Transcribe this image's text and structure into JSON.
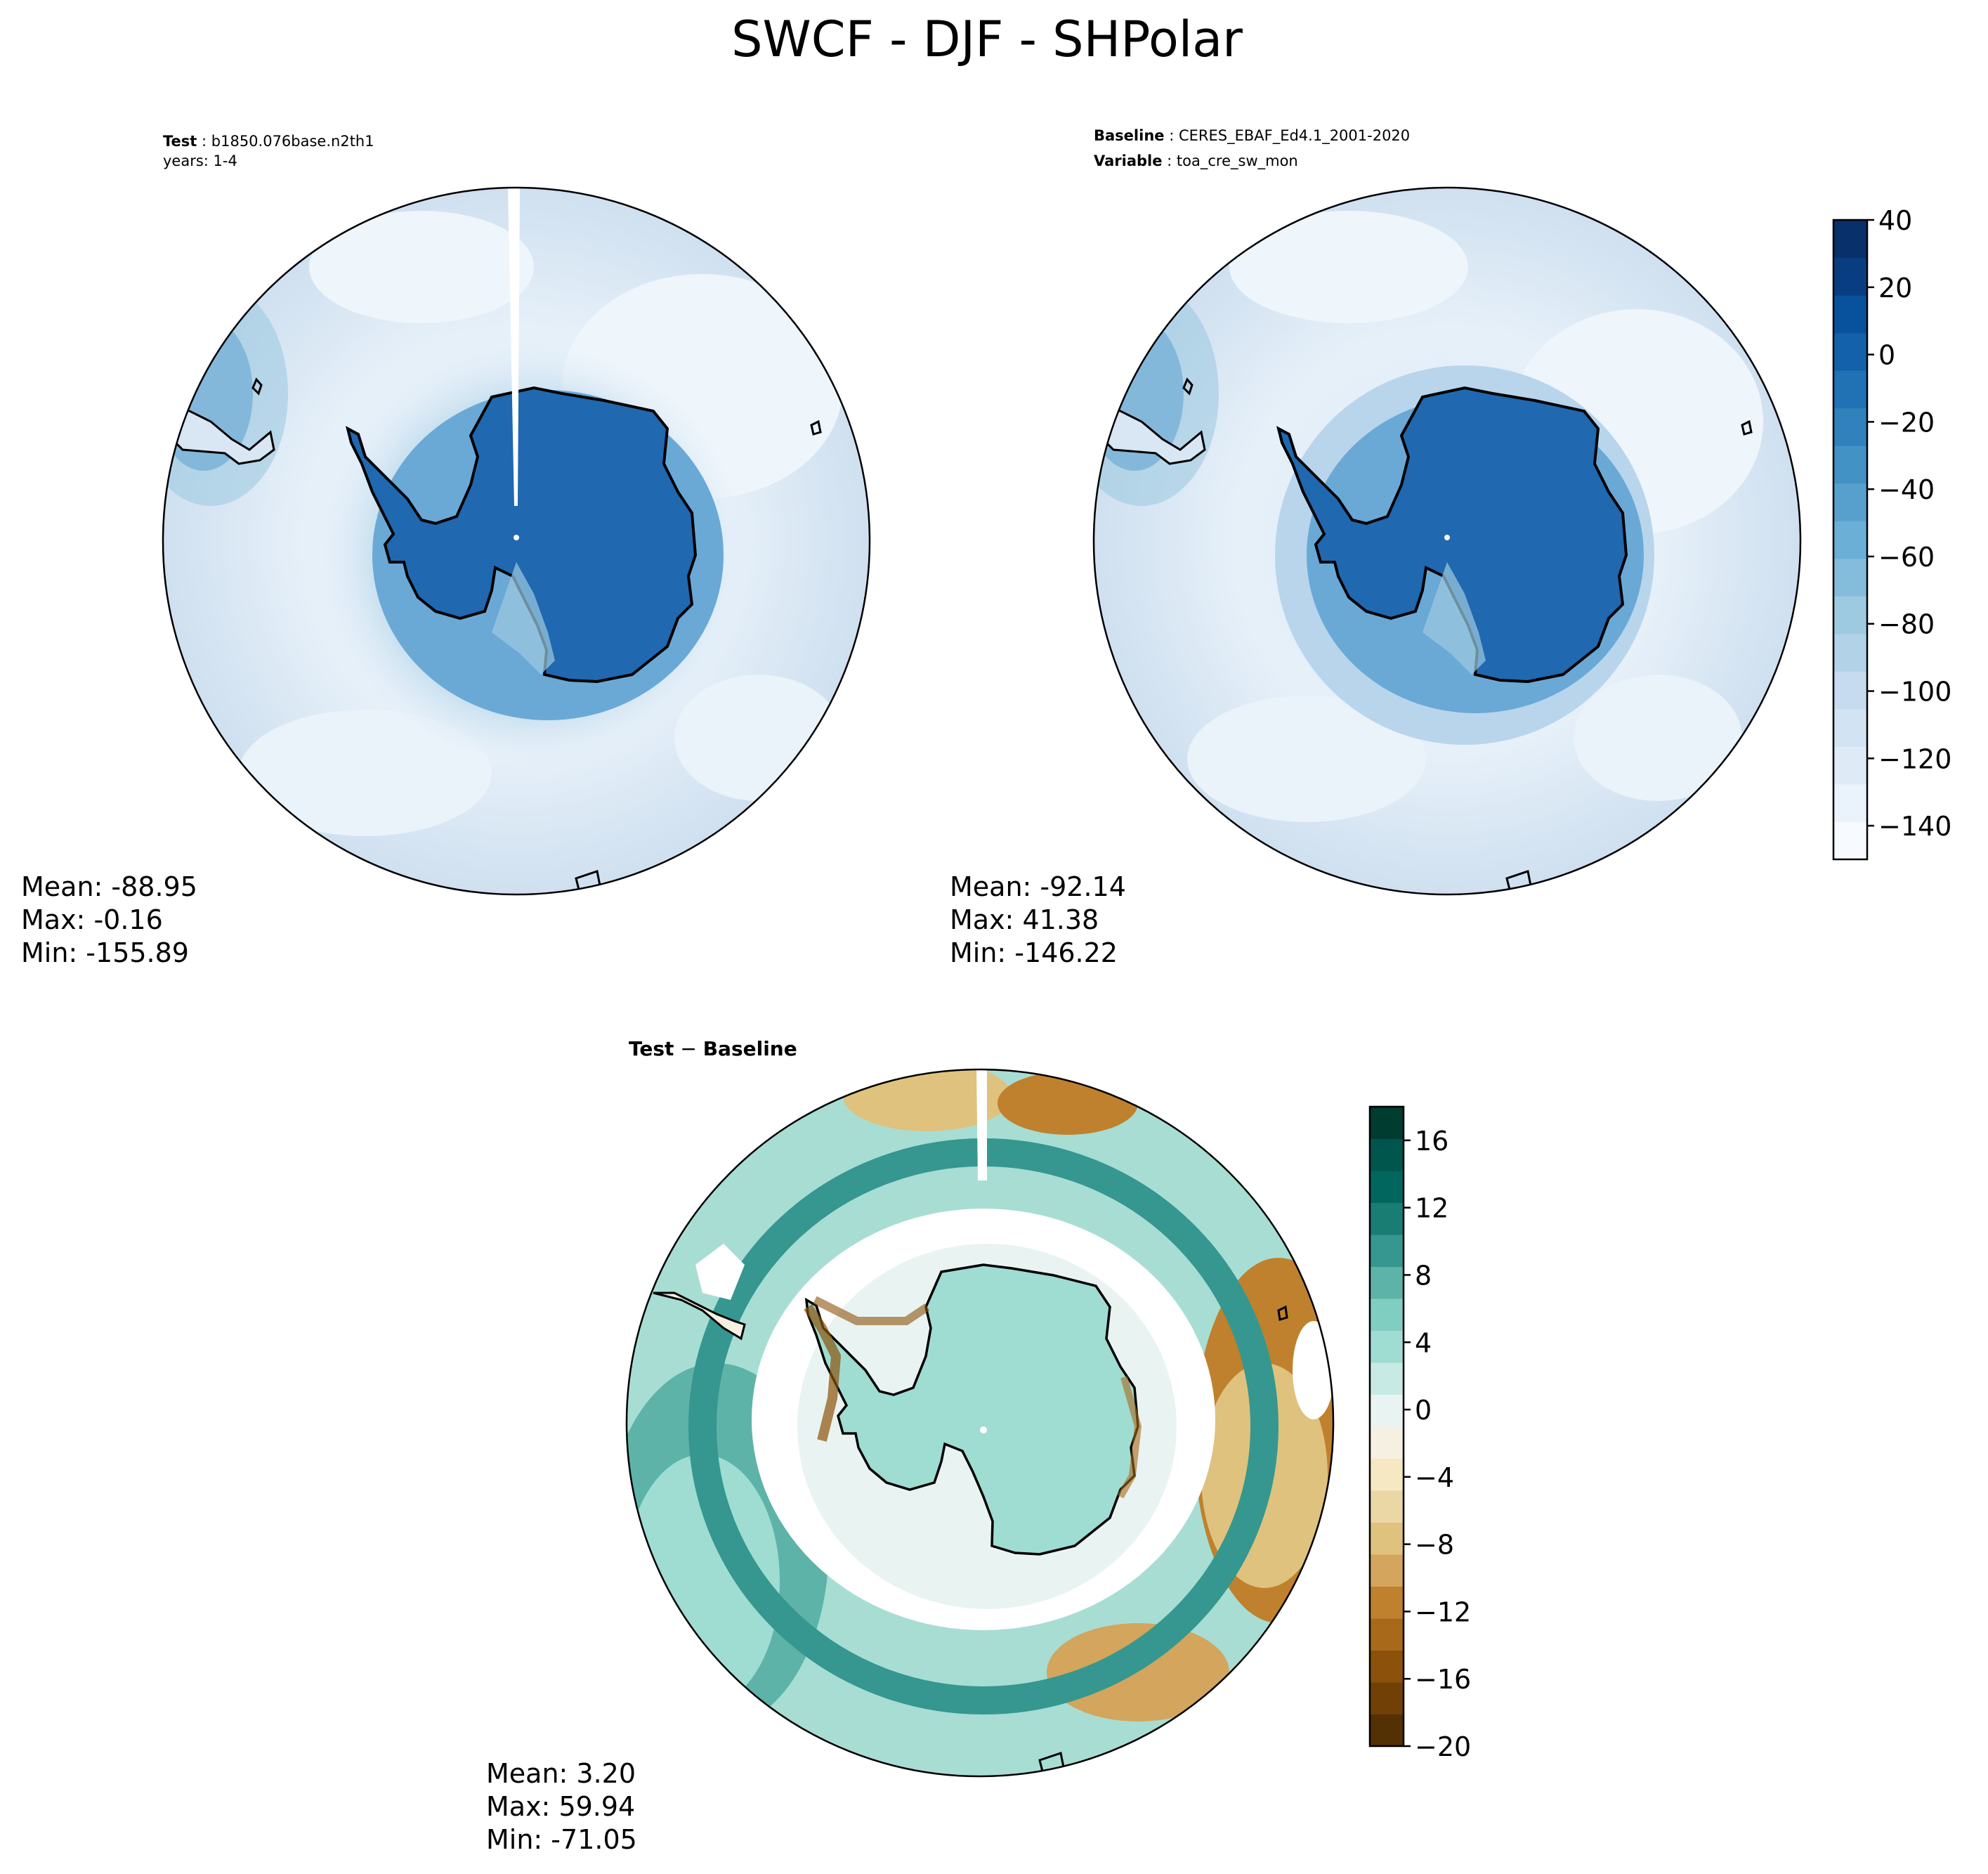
{
  "figure": {
    "title": "SWCF - DJF - SHPolar"
  },
  "panels": {
    "test": {
      "label_key": "Test",
      "label_value": "b1850.076base.n2th1",
      "years": "years: 1-4",
      "mean": "Mean: -88.95",
      "max": "Max: -0.16",
      "min": "Min: -155.89"
    },
    "baseline": {
      "label_key": "Baseline",
      "label_value": "CERES_EBAF_Ed4.1_2001-2020",
      "variable_key": "Variable",
      "variable_value": "toa_cre_sw_mon",
      "mean": "Mean: -92.14",
      "max": "Max: 41.38",
      "min": "Min: -146.22"
    },
    "diff": {
      "label_test": "Test",
      "label_minus": "−",
      "label_base": "Baseline",
      "mean": "Mean:  3.20",
      "max": "Max: 59.94",
      "min": "Min: -71.05"
    }
  },
  "colorbars": {
    "top": {
      "colormap": "Blues",
      "range": [
        -150,
        40
      ],
      "ticks": [
        "40",
        "20",
        "0",
        "−20",
        "−40",
        "−60",
        "−80",
        "−100",
        "−120",
        "−140"
      ],
      "tick_values": [
        40,
        20,
        0,
        -20,
        -40,
        -60,
        -80,
        -100,
        -120,
        -140
      ],
      "colors": [
        "#f7fbff",
        "#eaf3fb",
        "#deebf7",
        "#d2e3f3",
        "#c6dbef",
        "#b2d2e8",
        "#9ecae1",
        "#84bcdb",
        "#6baed6",
        "#57a0ce",
        "#4292c6",
        "#3181bd",
        "#2171b5",
        "#1361a9",
        "#08519c",
        "#083e81",
        "#08306b"
      ]
    },
    "diff": {
      "colormap": "BrBG",
      "range": [
        -20,
        18
      ],
      "ticks": [
        "16",
        "12",
        "8",
        "4",
        "0",
        "−4",
        "−8",
        "−12",
        "−16",
        "−20"
      ],
      "tick_values": [
        16,
        12,
        8,
        4,
        0,
        -4,
        -8,
        -12,
        -16,
        -20
      ],
      "colors": [
        "#543005",
        "#714006",
        "#8c510a",
        "#a8691a",
        "#bf812d",
        "#d3a55d",
        "#dfc27d",
        "#ebd6a6",
        "#f6e8c3",
        "#f5f0e2",
        "#e9f4f2",
        "#c7eae5",
        "#9fdcd2",
        "#80cdc1",
        "#5db3a8",
        "#35978f",
        "#1a7d74",
        "#01665e",
        "#00564d",
        "#003c30"
      ]
    }
  },
  "map_colors": {
    "ocean_light": "#e2eef8",
    "ocean_mid": "#c9dcef",
    "antarctica": "#2068b0",
    "coast": "#000000"
  }
}
